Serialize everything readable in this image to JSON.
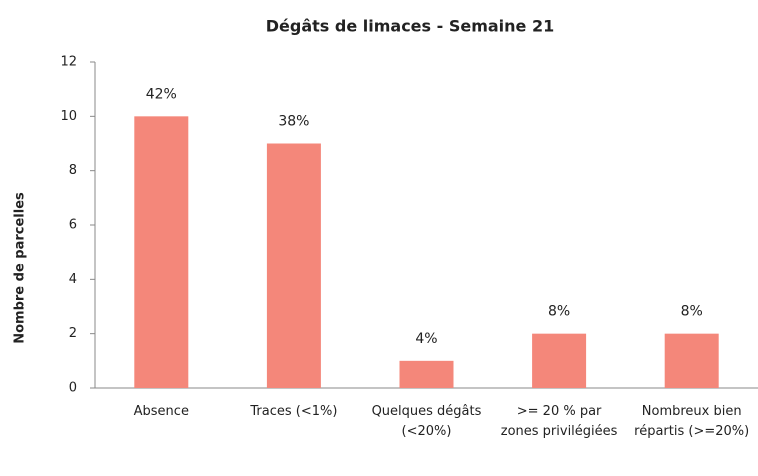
{
  "chart_data": {
    "type": "bar",
    "title": "Dégâts de limaces - Semaine 21",
    "y_label": "Nombre de parcelles",
    "categories": [
      "Absence",
      "Traces (<1%)",
      "Quelques dégâts (<20%)",
      ">= 20 % par zones privilégiées",
      "Nombreux bien répartis (>=20%)"
    ],
    "values": [
      10,
      9,
      1,
      2,
      2
    ],
    "data_labels": [
      "42%",
      "38%",
      "4%",
      "8%",
      "8%"
    ],
    "color": "#f4877a",
    "ylim": [
      0,
      12
    ],
    "yticks": [
      0,
      2,
      4,
      6,
      8,
      10,
      12
    ],
    "grid": false
  }
}
